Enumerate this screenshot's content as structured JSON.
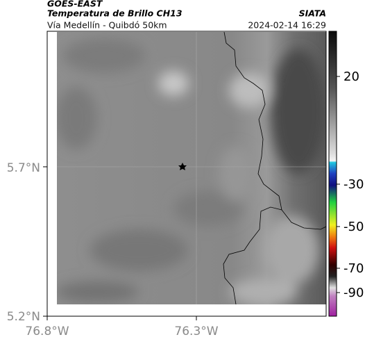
{
  "header": {
    "satellite": "GOES-EAST",
    "product": "Temperatura de Brillo CH13",
    "source": "SIATA",
    "route": "Vía Medellín - Quibdó 50km",
    "timestamp": "2024-02-14 16:29"
  },
  "map": {
    "lat_labels": [
      "5.7°N",
      "5.2°N"
    ],
    "lon_labels": [
      "76.8°W",
      "76.3°W"
    ]
  },
  "colorbar": {
    "ticks": [
      20,
      -30,
      -50,
      -70,
      -90
    ]
  }
}
